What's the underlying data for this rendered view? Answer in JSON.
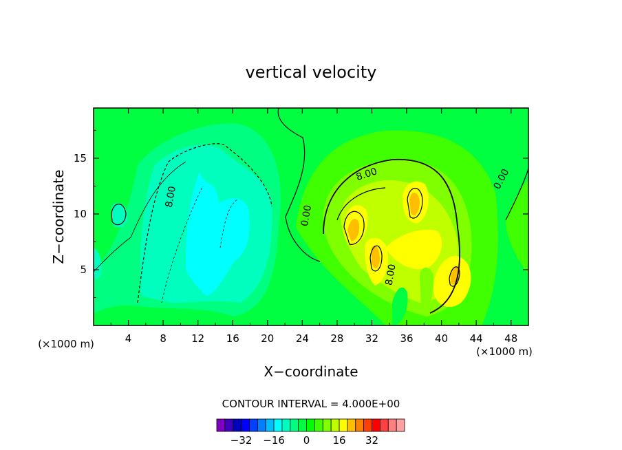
{
  "chart_data": {
    "type": "heatmap",
    "title": "vertical velocity",
    "xlabel": "X−coordinate",
    "ylabel": "Z−coordinate",
    "x_unit_left": "(×1000 m)",
    "x_unit_right": "(×1000 m)",
    "xlim": [
      0,
      50
    ],
    "ylim": [
      0,
      19.5
    ],
    "x_ticks": [
      4,
      8,
      12,
      16,
      20,
      24,
      28,
      32,
      36,
      40,
      44,
      48
    ],
    "y_ticks": [
      5,
      10,
      15
    ],
    "contour_labels": [
      {
        "text": "8.00",
        "x": 9.2,
        "y": 11.5,
        "angle": -80
      },
      {
        "text": "0.00",
        "x": 24.8,
        "y": 9.8,
        "angle": -80
      },
      {
        "text": "8.00",
        "x": 31.5,
        "y": 13.3,
        "angle": -18
      },
      {
        "text": "8.00",
        "x": 34.5,
        "y": 4.5,
        "angle": -80
      },
      {
        "text": "0.00",
        "x": 47.2,
        "y": 13.0,
        "angle": -62
      }
    ],
    "contour_interval_text": "CONTOUR INTERVAL = 4.000E+00",
    "colorbar": {
      "tick_labels": [
        "−32",
        "−16",
        "0",
        "16",
        "32"
      ],
      "tick_values": [
        -32,
        -16,
        0,
        16,
        32
      ],
      "colors": [
        "#7f00bf",
        "#3f00bf",
        "#0000bf",
        "#0000ff",
        "#0040ff",
        "#0080ff",
        "#00bfff",
        "#00ffff",
        "#00ffbf",
        "#00ff80",
        "#00ff40",
        "#00ff00",
        "#40ff00",
        "#80ff00",
        "#bfff00",
        "#ffff00",
        "#ffbf00",
        "#ff8000",
        "#ff4000",
        "#ff0000",
        "#ff4040",
        "#ff8080",
        "#ffa0a0"
      ]
    },
    "fields": {
      "w_min": -20,
      "w_max": 24,
      "background_color": "#00ff40",
      "features": [
        {
          "desc": "broad downdraft",
          "x": 13,
          "z": 9,
          "amplitude": -15
        },
        {
          "desc": "downdraft core",
          "x": 12,
          "z": 6,
          "amplitude": -18
        },
        {
          "desc": "downdraft core",
          "x": 16,
          "z": 8,
          "amplitude": -17
        },
        {
          "desc": "downdraft lobe",
          "x": 10,
          "z": 11,
          "amplitude": -12
        },
        {
          "desc": "small downdraft",
          "x": 3,
          "z": 10.5,
          "amplitude": -5
        },
        {
          "desc": "updraft cell",
          "x": 30,
          "z": 9,
          "amplitude": 22
        },
        {
          "desc": "updraft cell",
          "x": 37,
          "z": 11,
          "amplitude": 22
        },
        {
          "desc": "updraft cell",
          "x": 33,
          "z": 6,
          "amplitude": 22
        },
        {
          "desc": "updraft cell",
          "x": 42,
          "z": 5,
          "amplitude": 22
        },
        {
          "desc": "broad updraft",
          "x": 35,
          "z": 9,
          "amplitude": 13
        }
      ]
    }
  }
}
